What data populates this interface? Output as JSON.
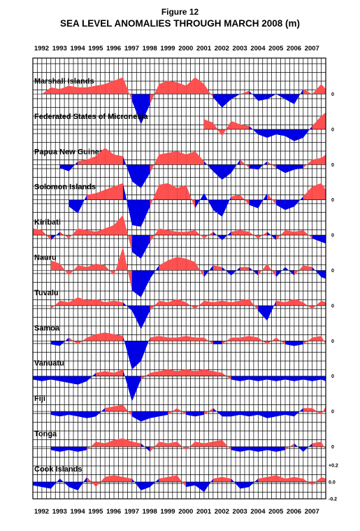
{
  "figure_label": "Figure 12",
  "chart_data": {
    "type": "area",
    "title": "SEA LEVEL ANOMALIES THROUGH MARCH 2008  (m)",
    "x_tick_labels": [
      "1992",
      "1993",
      "1994",
      "1995",
      "1996",
      "1997",
      "1998",
      "1999",
      "2000",
      "2001",
      "2002",
      "2003",
      "2004",
      "2005",
      "2006",
      "2007"
    ],
    "xlim": [
      1992.0,
      2008.25
    ],
    "grid": true,
    "positive_color": "#ff5050",
    "negative_color": "#0000e6",
    "panel_zero_label": "0",
    "scale_labels": [
      "+0.2",
      "0.0",
      "-0.2"
    ],
    "ylim_per_panel": [
      -0.2,
      0.2
    ],
    "series": [
      {
        "name": "Marshall Islands",
        "x": [
          1992.0,
          1992.5,
          1993.0,
          1993.5,
          1994.0,
          1994.5,
          1995.0,
          1995.5,
          1996.0,
          1996.5,
          1997.0,
          1997.5,
          1998.0,
          1998.5,
          1999.0,
          1999.5,
          2000.0,
          2000.5,
          2001.0,
          2001.5,
          2002.0,
          2002.5,
          2003.0,
          2003.5,
          2004.0,
          2004.5,
          2005.0,
          2005.5,
          2006.0,
          2006.5,
          2007.0,
          2007.5,
          2008.0,
          2008.25
        ],
        "values": [
          0.0,
          0.0,
          0.04,
          0.03,
          0.05,
          0.04,
          0.04,
          0.05,
          0.06,
          0.08,
          0.1,
          -0.04,
          -0.18,
          -0.06,
          0.06,
          0.08,
          0.07,
          0.05,
          0.1,
          0.06,
          -0.02,
          -0.08,
          -0.03,
          0.0,
          0.02,
          -0.04,
          -0.03,
          0.0,
          -0.03,
          -0.06,
          0.03,
          0.0,
          0.06,
          0.03
        ]
      },
      {
        "name": "Federated States of Micronesia",
        "x": [
          2001.5,
          2002.0,
          2002.5,
          2003.0,
          2003.5,
          2004.0,
          2004.5,
          2005.0,
          2005.5,
          2006.0,
          2006.5,
          2007.0,
          2007.5,
          2008.0,
          2008.25
        ],
        "values": [
          0.06,
          0.04,
          -0.04,
          0.05,
          0.03,
          0.02,
          -0.03,
          -0.05,
          -0.03,
          -0.04,
          -0.07,
          -0.05,
          0.02,
          0.08,
          0.1
        ]
      },
      {
        "name": "Papua New Guinea",
        "x": [
          1993.5,
          1994.0,
          1994.5,
          1995.0,
          1995.5,
          1996.0,
          1996.5,
          1997.0,
          1997.5,
          1998.0,
          1998.5,
          1999.0,
          1999.5,
          2000.0,
          2000.5,
          2001.0,
          2001.5,
          2002.0,
          2002.5,
          2003.0,
          2003.5,
          2004.0,
          2004.5,
          2005.0,
          2005.5,
          2006.0,
          2006.5,
          2007.0,
          2007.5,
          2008.0,
          2008.25
        ],
        "values": [
          -0.02,
          -0.04,
          0.02,
          0.03,
          0.05,
          0.1,
          0.06,
          0.05,
          -0.1,
          -0.14,
          -0.05,
          0.06,
          0.07,
          0.08,
          0.06,
          0.08,
          0.02,
          -0.04,
          -0.09,
          -0.05,
          0.03,
          -0.02,
          -0.03,
          0.02,
          -0.02,
          -0.05,
          -0.03,
          -0.02,
          0.03,
          0.04,
          0.06
        ]
      },
      {
        "name": "Solomon Islands",
        "x": [
          1994.0,
          1994.5,
          1995.0,
          1995.5,
          1996.0,
          1996.5,
          1997.0,
          1997.5,
          1998.0,
          1998.5,
          1999.0,
          1999.5,
          2000.0,
          2000.5,
          2001.0,
          2001.5,
          2002.0,
          2002.5,
          2003.0,
          2003.5,
          2004.0,
          2004.5,
          2005.0,
          2005.5,
          2006.0,
          2006.5,
          2007.0,
          2007.5,
          2008.0,
          2008.25
        ],
        "values": [
          -0.04,
          -0.08,
          0.03,
          0.04,
          0.06,
          0.08,
          0.1,
          -0.15,
          -0.16,
          -0.04,
          0.09,
          0.1,
          0.07,
          0.09,
          -0.05,
          0.04,
          -0.06,
          -0.1,
          0.02,
          0.03,
          -0.03,
          -0.05,
          0.04,
          -0.03,
          -0.06,
          -0.04,
          0.02,
          0.08,
          0.1,
          0.06
        ]
      },
      {
        "name": "Kiribati",
        "x": [
          1992.0,
          1992.5,
          1993.0,
          1993.5,
          1994.0,
          1994.5,
          1995.0,
          1995.5,
          1996.0,
          1996.5,
          1997.0,
          1997.5,
          1998.0,
          1998.5,
          1999.0,
          1999.5,
          2000.0,
          2000.5,
          2001.0,
          2001.5,
          2002.0,
          2002.5,
          2003.0,
          2003.5,
          2004.0,
          2004.5,
          2005.0,
          2005.5,
          2006.0,
          2006.5,
          2007.0,
          2007.5,
          2008.0,
          2008.25
        ],
        "values": [
          0.04,
          0.03,
          -0.03,
          0.02,
          -0.02,
          0.04,
          0.03,
          0.02,
          0.04,
          0.06,
          0.12,
          -0.1,
          -0.14,
          -0.04,
          0.04,
          0.03,
          0.02,
          0.02,
          0.03,
          -0.02,
          0.02,
          -0.03,
          0.02,
          0.03,
          0.02,
          -0.02,
          0.02,
          -0.03,
          0.03,
          0.02,
          0.03,
          -0.02,
          -0.04,
          -0.05
        ]
      },
      {
        "name": "Nauru",
        "x": [
          1993.0,
          1993.5,
          1994.0,
          1994.5,
          1995.0,
          1995.5,
          1996.0,
          1996.5,
          1997.0,
          1997.5,
          1998.0,
          1998.5,
          1999.0,
          1999.5,
          2000.0,
          2000.5,
          2001.0,
          2001.5,
          2002.0,
          2002.5,
          2003.0,
          2003.5,
          2004.0,
          2004.5,
          2005.0,
          2005.5,
          2006.0,
          2006.5,
          2007.0,
          2007.5,
          2008.0,
          2008.25
        ],
        "values": [
          0.06,
          0.04,
          -0.03,
          0.03,
          0.02,
          0.04,
          0.03,
          -0.03,
          0.14,
          -0.12,
          -0.16,
          -0.05,
          0.03,
          0.06,
          0.08,
          0.07,
          0.05,
          -0.04,
          0.03,
          0.02,
          -0.03,
          0.02,
          0.02,
          -0.03,
          0.04,
          -0.04,
          0.02,
          -0.03,
          0.03,
          0.02,
          -0.04,
          -0.05
        ]
      },
      {
        "name": "Tuvalu",
        "x": [
          1993.0,
          1993.5,
          1994.0,
          1994.5,
          1995.0,
          1995.5,
          1996.0,
          1996.5,
          1997.0,
          1997.5,
          1998.0,
          1998.5,
          1999.0,
          1999.5,
          2000.0,
          2000.5,
          2001.0,
          2001.5,
          2002.0,
          2002.5,
          2003.0,
          2003.5,
          2004.0,
          2004.5,
          2005.0,
          2005.5,
          2006.0,
          2006.5,
          2007.0,
          2007.5,
          2008.0,
          2008.25
        ],
        "values": [
          -0.02,
          0.03,
          0.02,
          0.05,
          0.03,
          0.04,
          0.02,
          0.03,
          0.02,
          -0.03,
          -0.14,
          -0.03,
          0.03,
          0.02,
          0.04,
          0.02,
          -0.02,
          0.03,
          0.02,
          0.03,
          0.02,
          0.03,
          0.04,
          -0.03,
          -0.09,
          0.03,
          0.02,
          0.04,
          0.02,
          -0.02,
          0.03,
          0.02
        ]
      },
      {
        "name": "Samoa",
        "x": [
          1993.0,
          1993.5,
          1994.0,
          1994.5,
          1995.0,
          1995.5,
          1996.0,
          1996.5,
          1997.0,
          1997.5,
          1998.0,
          1998.5,
          1999.0,
          1999.5,
          2000.0,
          2000.5,
          2001.0,
          2001.5,
          2002.0,
          2002.5,
          2003.0,
          2003.5,
          2004.0,
          2004.5,
          2005.0,
          2005.5,
          2006.0,
          2006.5,
          2007.0,
          2007.5,
          2008.0,
          2008.25
        ],
        "values": [
          -0.02,
          -0.03,
          0.02,
          -0.02,
          0.02,
          0.04,
          0.05,
          0.04,
          0.03,
          -0.17,
          -0.12,
          0.02,
          0.03,
          0.02,
          0.02,
          0.03,
          0.02,
          0.02,
          -0.02,
          -0.02,
          0.02,
          0.02,
          0.03,
          0.02,
          -0.02,
          0.02,
          -0.02,
          -0.03,
          -0.02,
          0.02,
          0.03,
          -0.02
        ]
      },
      {
        "name": "Vanuatu",
        "x": [
          1992.0,
          1992.5,
          1993.0,
          1993.5,
          1994.0,
          1994.5,
          1995.0,
          1995.5,
          1996.0,
          1996.5,
          1997.0,
          1997.5,
          1998.0,
          1998.5,
          1999.0,
          1999.5,
          2000.0,
          2000.5,
          2001.0,
          2001.5,
          2002.0,
          2002.5,
          2003.0,
          2003.5,
          2004.0,
          2004.5,
          2005.0,
          2005.5,
          2006.0,
          2006.5,
          2007.0,
          2007.5,
          2008.0,
          2008.25
        ],
        "values": [
          -0.02,
          -0.03,
          -0.02,
          -0.03,
          -0.04,
          -0.05,
          -0.03,
          0.02,
          0.03,
          0.02,
          0.04,
          -0.15,
          -0.02,
          0.02,
          0.03,
          0.04,
          0.03,
          0.04,
          0.03,
          0.04,
          0.03,
          0.02,
          -0.02,
          -0.03,
          -0.02,
          -0.03,
          -0.02,
          -0.03,
          -0.02,
          -0.03,
          -0.02,
          -0.03,
          -0.02,
          -0.03
        ]
      },
      {
        "name": "Fiji",
        "x": [
          1993.0,
          1993.5,
          1994.0,
          1994.5,
          1995.0,
          1995.5,
          1996.0,
          1996.5,
          1997.0,
          1997.5,
          1998.0,
          1998.5,
          1999.0,
          1999.5,
          2000.0,
          2000.5,
          2001.0,
          2001.5,
          2002.0,
          2002.5,
          2003.0,
          2003.5,
          2004.0,
          2004.5,
          2005.0,
          2005.5,
          2006.0,
          2006.5,
          2007.0,
          2007.5,
          2008.0,
          2008.25
        ],
        "values": [
          -0.02,
          -0.03,
          -0.02,
          -0.03,
          -0.04,
          -0.03,
          0.02,
          0.03,
          0.04,
          -0.03,
          -0.06,
          -0.04,
          -0.03,
          -0.02,
          0.02,
          -0.02,
          -0.03,
          -0.02,
          0.02,
          -0.03,
          -0.03,
          -0.02,
          -0.03,
          -0.02,
          -0.04,
          -0.03,
          -0.02,
          -0.03,
          0.02,
          0.02,
          -0.02,
          0.03
        ]
      },
      {
        "name": "Tonga",
        "x": [
          1993.0,
          1993.5,
          1994.0,
          1994.5,
          1995.0,
          1995.5,
          1996.0,
          1996.5,
          1997.0,
          1997.5,
          1998.0,
          1998.5,
          1999.0,
          1999.5,
          2000.0,
          2000.5,
          2001.0,
          2001.5,
          2002.0,
          2002.5,
          2003.0,
          2003.5,
          2004.0,
          2004.5,
          2005.0,
          2005.5,
          2006.0,
          2006.5,
          2007.0,
          2007.5,
          2008.0,
          2008.25
        ],
        "values": [
          -0.02,
          -0.03,
          -0.02,
          -0.03,
          -0.02,
          0.03,
          0.02,
          0.04,
          0.05,
          0.03,
          0.02,
          -0.03,
          0.03,
          0.02,
          0.03,
          -0.02,
          0.03,
          0.02,
          0.03,
          0.04,
          -0.02,
          -0.03,
          -0.02,
          -0.03,
          -0.02,
          -0.03,
          -0.02,
          0.02,
          -0.03,
          0.02,
          0.03,
          -0.02
        ]
      },
      {
        "name": "Cook Islands",
        "x": [
          1992.0,
          1992.5,
          1993.0,
          1993.5,
          1994.0,
          1994.5,
          1995.0,
          1995.5,
          1996.0,
          1996.5,
          1997.0,
          1997.5,
          1998.0,
          1998.5,
          1999.0,
          1999.5,
          2000.0,
          2000.5,
          2001.0,
          2001.5,
          2002.0,
          2002.5,
          2003.0,
          2003.5,
          2004.0,
          2004.5,
          2005.0,
          2005.5,
          2006.0,
          2006.5,
          2007.0,
          2007.5,
          2008.0,
          2008.25
        ],
        "values": [
          -0.02,
          -0.03,
          -0.04,
          0.02,
          -0.03,
          -0.05,
          0.03,
          -0.03,
          0.03,
          0.04,
          0.03,
          0.02,
          -0.05,
          -0.03,
          0.02,
          0.03,
          0.04,
          -0.03,
          -0.02,
          -0.06,
          0.02,
          0.03,
          0.02,
          -0.04,
          -0.03,
          0.02,
          0.03,
          0.04,
          0.02,
          0.03,
          0.02,
          -0.02,
          0.03,
          0.02
        ]
      }
    ]
  }
}
